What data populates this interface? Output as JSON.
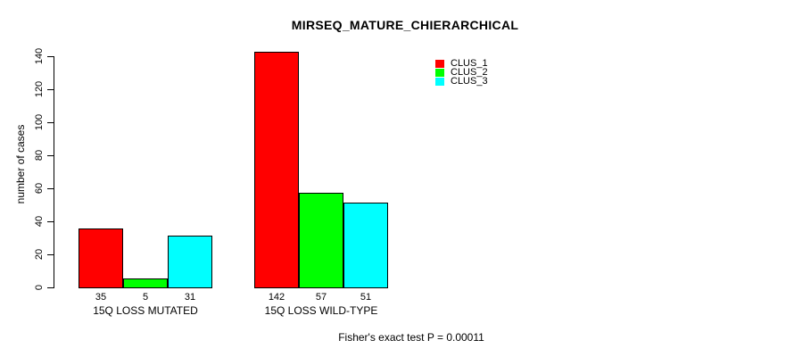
{
  "title": "MIRSEQ_MATURE_CHIERARCHICAL",
  "footnote": "Fisher's exact test P = 0.00011",
  "chart_data": {
    "type": "bar",
    "title": "MIRSEQ_MATURE_CHIERARCHICAL",
    "xlabel": "",
    "ylabel": "number of cases",
    "categories": [
      "15Q LOSS MUTATED",
      "15Q LOSS WILD-TYPE"
    ],
    "series": [
      {
        "name": "CLUS_1",
        "color": "#FF0000",
        "values": [
          35,
          142
        ]
      },
      {
        "name": "CLUS_2",
        "color": "#00FF00",
        "values": [
          5,
          57
        ]
      },
      {
        "name": "CLUS_3",
        "color": "#00FFFF",
        "values": [
          31,
          51
        ]
      }
    ],
    "bar_value_labels": [
      [
        "35",
        "5",
        "31"
      ],
      [
        "142",
        "57",
        "51"
      ]
    ],
    "yticks": [
      0,
      20,
      40,
      60,
      80,
      100,
      120,
      140
    ],
    "ylim": [
      0,
      145
    ],
    "grid": false,
    "legend_position": "top-right",
    "footnote": "Fisher's exact test P = 0.00011"
  }
}
